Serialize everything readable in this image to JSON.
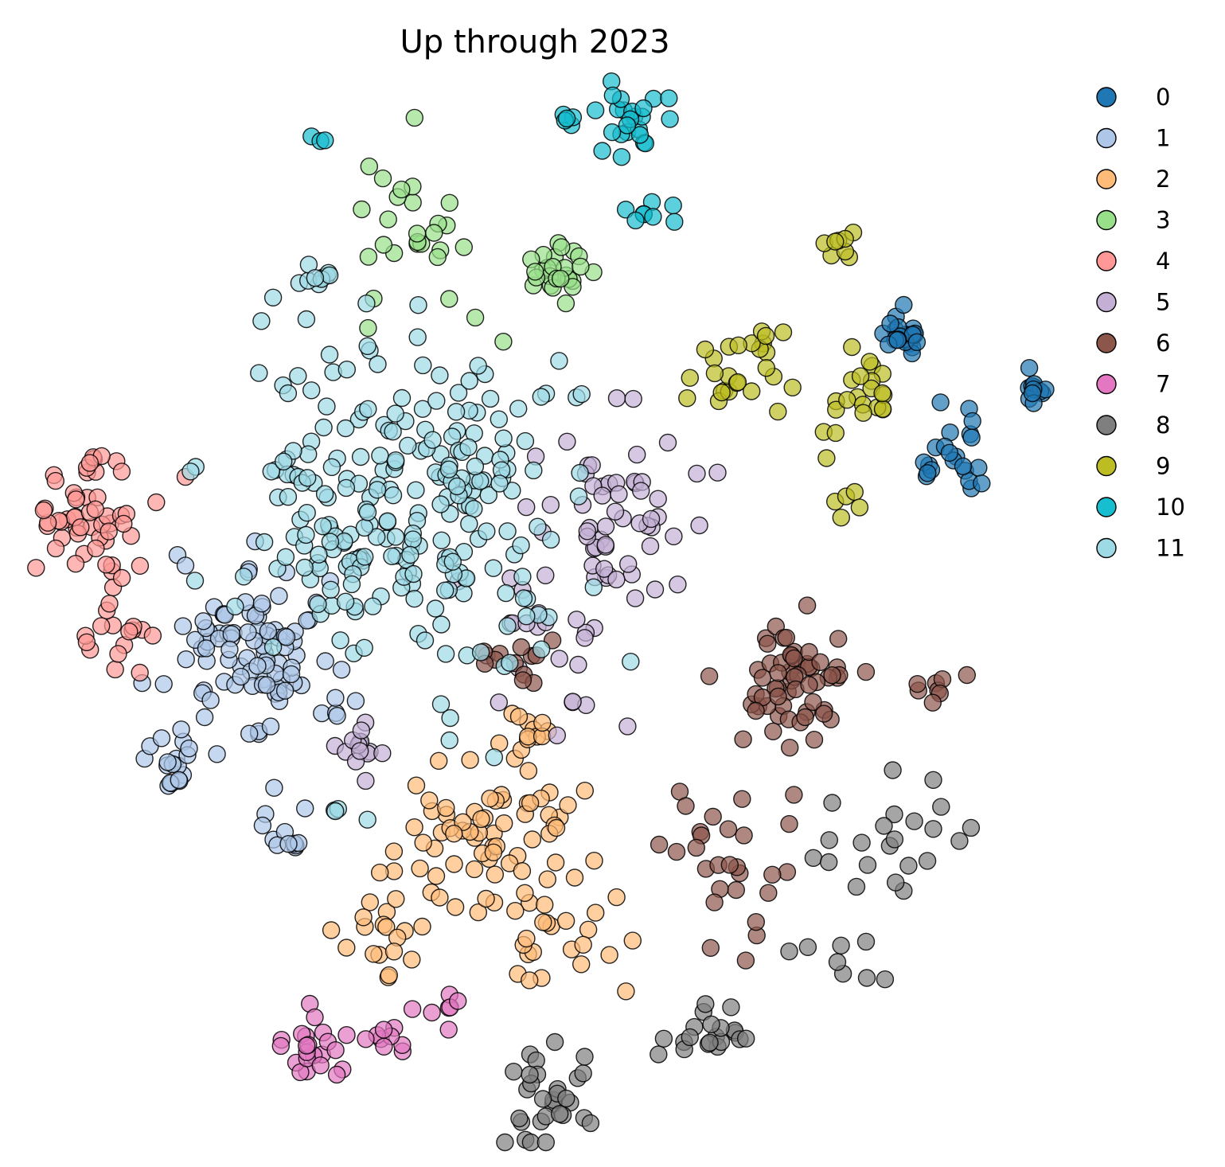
{
  "chart_data": {
    "type": "scatter",
    "title": "Up through 2023",
    "xlabel": "",
    "ylabel": "",
    "axes_visible": false,
    "grid": false,
    "legend_position": "right",
    "marker_opacity": 0.7,
    "series": [
      {
        "name": "0",
        "color": "#1f77b4",
        "clusters": [
          {
            "center": [
              1135,
              420
            ],
            "spread": 16,
            "n": 24
          },
          {
            "center": [
              1300,
              490
            ],
            "spread": 12,
            "n": 12
          },
          {
            "center": [
              1200,
              570
            ],
            "spread": 32,
            "n": 22
          }
        ]
      },
      {
        "name": "1",
        "color": "#aec7e8",
        "clusters": [
          {
            "center": [
              310,
              820
            ],
            "spread": 65,
            "n": 95
          },
          {
            "center": [
              220,
              960
            ],
            "spread": 40,
            "n": 20
          },
          {
            "center": [
              350,
              1040
            ],
            "spread": 30,
            "n": 12
          }
        ]
      },
      {
        "name": "2",
        "color": "#ffbb78",
        "clusters": [
          {
            "center": [
              620,
              1060
            ],
            "spread": 80,
            "n": 70
          },
          {
            "center": [
              480,
              1170
            ],
            "spread": 40,
            "n": 20
          },
          {
            "center": [
              720,
              1190
            ],
            "spread": 55,
            "n": 20
          },
          {
            "center": [
              660,
              920
            ],
            "spread": 30,
            "n": 12
          }
        ]
      },
      {
        "name": "3",
        "color": "#98df8a",
        "clusters": [
          {
            "center": [
              700,
              350
            ],
            "spread": 28,
            "n": 24
          },
          {
            "center": [
              520,
              265
            ],
            "spread": 60,
            "n": 22
          },
          {
            "center": [
              560,
              360
            ],
            "spread": 70,
            "n": 8
          }
        ]
      },
      {
        "name": "4",
        "color": "#ff9896",
        "clusters": [
          {
            "center": [
              120,
              650
            ],
            "spread": 50,
            "n": 55
          },
          {
            "center": [
              150,
              790
            ],
            "spread": 35,
            "n": 16
          }
        ]
      },
      {
        "name": "5",
        "color": "#c5b0d5",
        "clusters": [
          {
            "center": [
              780,
              640
            ],
            "spread": 70,
            "n": 55
          },
          {
            "center": [
              450,
              940
            ],
            "spread": 22,
            "n": 14
          },
          {
            "center": [
              700,
              810
            ],
            "spread": 70,
            "n": 25
          }
        ]
      },
      {
        "name": "6",
        "color": "#8c564b",
        "clusters": [
          {
            "center": [
              990,
              860
            ],
            "spread": 50,
            "n": 60
          },
          {
            "center": [
              910,
              1060
            ],
            "spread": 60,
            "n": 28
          },
          {
            "center": [
              1170,
              860
            ],
            "spread": 25,
            "n": 8
          },
          {
            "center": [
              640,
              830
            ],
            "spread": 40,
            "n": 12
          }
        ]
      },
      {
        "name": "7",
        "color": "#e377c2",
        "clusters": [
          {
            "center": [
              400,
              1310
            ],
            "spread": 25,
            "n": 22
          },
          {
            "center": [
              500,
              1300
            ],
            "spread": 20,
            "n": 10
          },
          {
            "center": [
              570,
              1260
            ],
            "spread": 18,
            "n": 6
          }
        ]
      },
      {
        "name": "8",
        "color": "#7f7f7f",
        "clusters": [
          {
            "center": [
              690,
              1380
            ],
            "spread": 45,
            "n": 30
          },
          {
            "center": [
              890,
              1290
            ],
            "spread": 40,
            "n": 20
          },
          {
            "center": [
              1130,
              1050
            ],
            "spread": 60,
            "n": 22
          },
          {
            "center": [
              1060,
              1200
            ],
            "spread": 40,
            "n": 8
          }
        ]
      },
      {
        "name": "9",
        "color": "#bcbd22",
        "clusters": [
          {
            "center": [
              930,
              450
            ],
            "spread": 45,
            "n": 26
          },
          {
            "center": [
              1080,
              500
            ],
            "spread": 30,
            "n": 22
          },
          {
            "center": [
              1055,
              300
            ],
            "spread": 16,
            "n": 8
          },
          {
            "center": [
              1060,
              625
            ],
            "spread": 20,
            "n": 5
          }
        ]
      },
      {
        "name": "10",
        "color": "#17becf",
        "clusters": [
          {
            "center": [
              790,
              150
            ],
            "spread": 30,
            "n": 24
          },
          {
            "center": [
              720,
              150
            ],
            "spread": 12,
            "n": 5
          },
          {
            "center": [
              410,
              180
            ],
            "spread": 10,
            "n": 3
          },
          {
            "center": [
              820,
              265
            ],
            "spread": 20,
            "n": 8
          }
        ]
      },
      {
        "name": "11",
        "color": "#9edae5",
        "clusters": [
          {
            "center": [
              500,
              620
            ],
            "spread": 130,
            "n": 230
          },
          {
            "center": [
              390,
              350
            ],
            "spread": 18,
            "n": 10
          },
          {
            "center": [
              600,
              800
            ],
            "spread": 80,
            "n": 20
          },
          {
            "center": [
              430,
              1030
            ],
            "spread": 20,
            "n": 4
          }
        ]
      }
    ]
  },
  "legend": {
    "items": [
      "0",
      "1",
      "2",
      "3",
      "4",
      "5",
      "6",
      "7",
      "8",
      "9",
      "10",
      "11"
    ]
  }
}
